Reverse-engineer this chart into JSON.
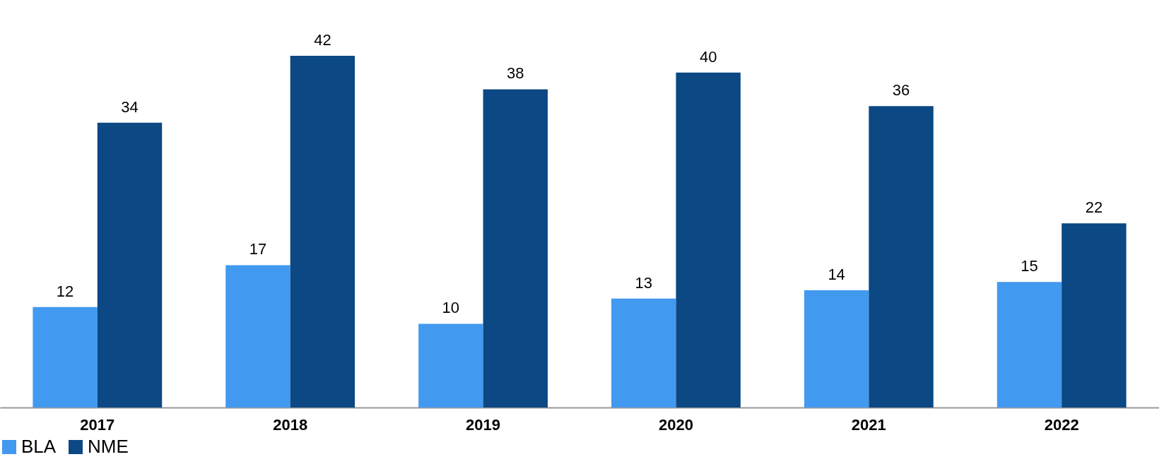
{
  "chart_data": {
    "type": "bar",
    "categories": [
      "2017",
      "2018",
      "2019",
      "2020",
      "2021",
      "2022"
    ],
    "series": [
      {
        "name": "BLA",
        "color": "#4299f0",
        "values": [
          12,
          17,
          10,
          13,
          14,
          15
        ]
      },
      {
        "name": "NME",
        "color": "#0b4884",
        "values": [
          34,
          42,
          38,
          40,
          36,
          22
        ]
      }
    ],
    "data_labels": true,
    "grid": false,
    "legend": "bottom"
  }
}
